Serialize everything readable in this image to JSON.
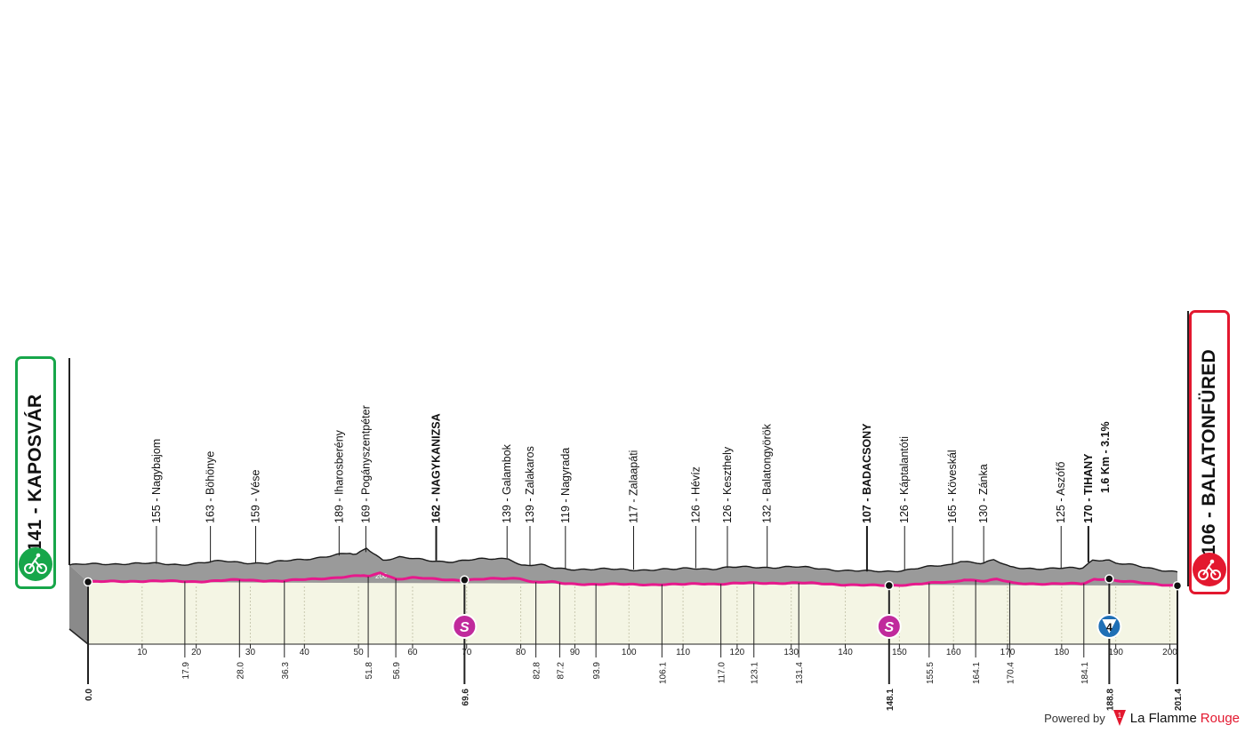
{
  "stage": {
    "start": {
      "label": "141 - KAPOSVÁR",
      "km": "0.0",
      "color": "#17a64a",
      "icon": "cyclist-icon"
    },
    "finish": {
      "label": "106 - BALATONFÜRED",
      "km": "201.4",
      "color": "#e3182f",
      "icon": "finish-cyclist-icon"
    },
    "total_km": 201.4,
    "elevation_tick": "200"
  },
  "colors": {
    "route": "#e6198c",
    "mountain": "#9a9a9a",
    "ground": "#f4f5e4",
    "sprint": "#c02a9c",
    "climb": "#1f6fb5"
  },
  "chart_data": {
    "type": "area",
    "x_ticks": [
      10,
      20,
      30,
      40,
      50,
      60,
      70,
      80,
      90,
      100,
      110,
      120,
      130,
      140,
      150,
      160,
      170,
      180,
      190,
      200
    ],
    "xlim": [
      0,
      201.4
    ],
    "km_markers": [
      "0.0",
      "17.9",
      "28.0",
      "36.3",
      "51.8",
      "56.9",
      "69.6",
      "82.8",
      "87.2",
      "93.9",
      "106.1",
      "117.0",
      "123.1",
      "131.4",
      "148.1",
      "155.5",
      "164.1",
      "170.4",
      "184.1",
      "188.8",
      "201.4"
    ],
    "bold_markers": [
      "0.0",
      "69.6",
      "148.1",
      "188.8",
      "201.4"
    ],
    "elevation_profile": [
      [
        0,
        141
      ],
      [
        10,
        150
      ],
      [
        20,
        145
      ],
      [
        28,
        160
      ],
      [
        36,
        150
      ],
      [
        42,
        170
      ],
      [
        51,
        200
      ],
      [
        52,
        189
      ],
      [
        54,
        230
      ],
      [
        57,
        169
      ],
      [
        60,
        180
      ],
      [
        63,
        170
      ],
      [
        67,
        162
      ],
      [
        70,
        160
      ],
      [
        75,
        170
      ],
      [
        80,
        178
      ],
      [
        82,
        140
      ],
      [
        86,
        139
      ],
      [
        88,
        125
      ],
      [
        95,
        119
      ],
      [
        110,
        117
      ],
      [
        113,
        126
      ],
      [
        117,
        123
      ],
      [
        120,
        128
      ],
      [
        124,
        130
      ],
      [
        131,
        132
      ],
      [
        138,
        120
      ],
      [
        145,
        108
      ],
      [
        148,
        107
      ],
      [
        152,
        118
      ],
      [
        155,
        128
      ],
      [
        160,
        140
      ],
      [
        162,
        165
      ],
      [
        166,
        150
      ],
      [
        168,
        165
      ],
      [
        171,
        130
      ],
      [
        178,
        122
      ],
      [
        184,
        125
      ],
      [
        186,
        168
      ],
      [
        188.8,
        170
      ],
      [
        190,
        150
      ],
      [
        193,
        140
      ],
      [
        198,
        120
      ],
      [
        201.4,
        106
      ]
    ],
    "locations": [
      {
        "km": 14.5,
        "label": "155 - Nagybajom",
        "bold": false
      },
      {
        "km": 24.4,
        "label": "163 - Böhönye",
        "bold": false
      },
      {
        "km": 32.7,
        "label": "159 - Vése",
        "bold": false
      },
      {
        "km": 48.0,
        "label": "189 - Iharosberény",
        "bold": false
      },
      {
        "km": 52.9,
        "label": "169 - Pogányszentpéter",
        "bold": false
      },
      {
        "km": 65.8,
        "label": "162 - NAGYKANIZSA",
        "bold": true
      },
      {
        "km": 78.8,
        "label": "139 - Galambok",
        "bold": false
      },
      {
        "km": 83.0,
        "label": "139 - Zalakaros",
        "bold": false
      },
      {
        "km": 89.5,
        "label": "119 - Nagyrada",
        "bold": false
      },
      {
        "km": 102.0,
        "label": "117 - Zalaapáti",
        "bold": false
      },
      {
        "km": 113.4,
        "label": "126 - Hévíz",
        "bold": false
      },
      {
        "km": 119.2,
        "label": "126 - Keszthely",
        "bold": false
      },
      {
        "km": 126.5,
        "label": "132 - Balatongyörök",
        "bold": false
      },
      {
        "km": 144.8,
        "label": "107 - BADACSONY",
        "bold": true
      },
      {
        "km": 151.7,
        "label": "126 - Káptalantóti",
        "bold": false
      },
      {
        "km": 160.5,
        "label": "165 - Köveskál",
        "bold": false
      },
      {
        "km": 166.2,
        "label": "130 - Zánka",
        "bold": false
      },
      {
        "km": 180.4,
        "label": "125 - Aszófő",
        "bold": false
      },
      {
        "km": 185.4,
        "label": "170 - TIHANY",
        "bold": true
      }
    ],
    "climb_label": "1.6 Km - 3.1%",
    "sprints": [
      {
        "km": 69.6,
        "symbol": "S"
      },
      {
        "km": 148.1,
        "symbol": "S"
      }
    ],
    "kom": [
      {
        "km": 188.8,
        "category": "4"
      }
    ]
  },
  "footer": {
    "powered_by": "Powered by",
    "brand_a": "La Flamme",
    "brand_b": "Rouge"
  }
}
